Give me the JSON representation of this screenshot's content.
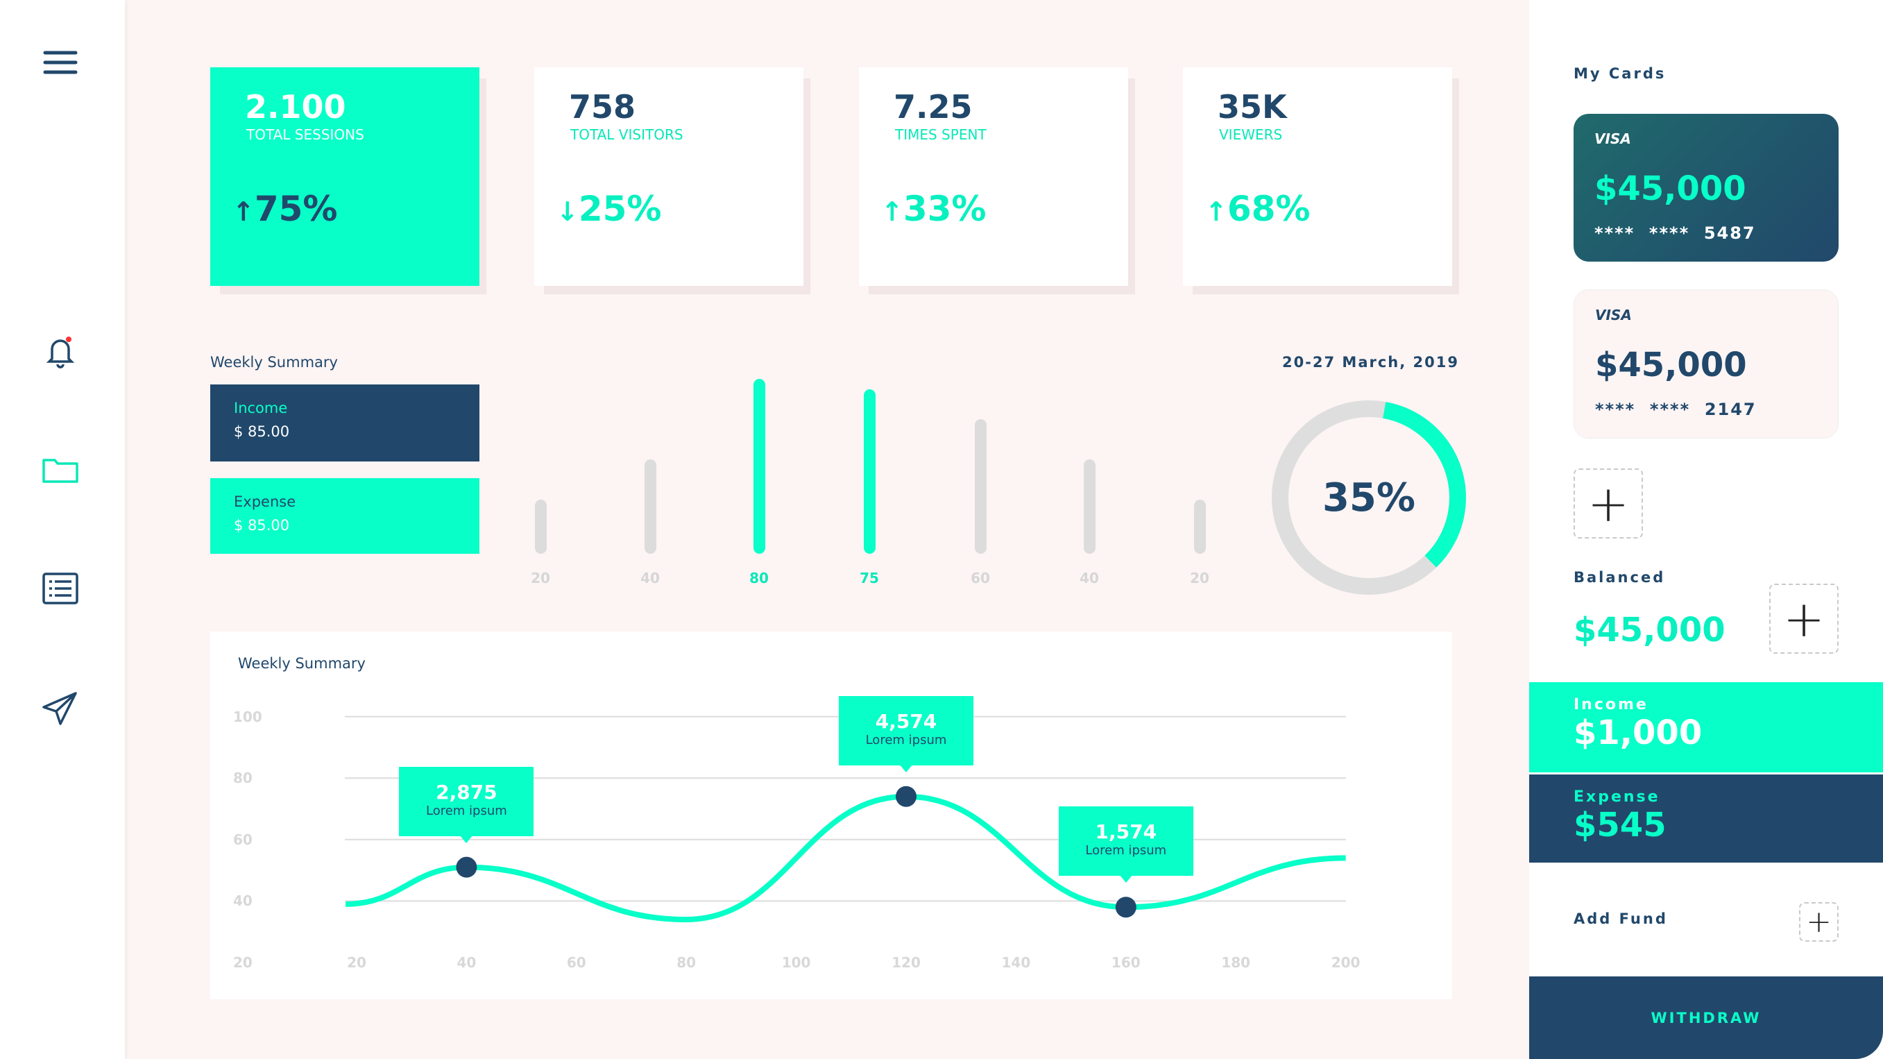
{
  "colors": {
    "accent": "#08ffc8",
    "navy": "#21486b",
    "background": "#fdf4f4"
  },
  "sidebar": {
    "icons": [
      "menu-icon",
      "bell-icon",
      "folder-icon",
      "list-icon",
      "send-icon"
    ]
  },
  "stats": [
    {
      "value": "2.100",
      "label": "TOTAL SESSIONS",
      "arrow": "↑",
      "change": "75%"
    },
    {
      "value": "758",
      "label": "TOTAL VISITORS",
      "arrow": "↓",
      "change": "25%"
    },
    {
      "value": "7.25",
      "label": "TIMES SPENT",
      "arrow": "↑",
      "change": "33%"
    },
    {
      "value": "35K",
      "label": "VIEWERS",
      "arrow": "↑",
      "change": "68%"
    }
  ],
  "weekly": {
    "title": "Weekly Summary",
    "date": "20-27 March, 2019",
    "income": {
      "label": "Income",
      "value": "$ 85.00"
    },
    "expense": {
      "label": "Expense",
      "value": "$ 85.00"
    },
    "donut": {
      "label": "35%",
      "value": 35
    }
  },
  "chart_data": [
    {
      "type": "bar",
      "categories": [
        "20",
        "40",
        "80",
        "75",
        "60",
        "40",
        "20"
      ],
      "values": [
        20,
        40,
        80,
        75,
        60,
        40,
        20
      ],
      "highlighted": [
        2,
        3
      ]
    },
    {
      "type": "line",
      "title": "Weekly Summary",
      "x": [
        18,
        40,
        80,
        120,
        160,
        200
      ],
      "y": [
        39,
        51,
        34,
        74,
        38,
        54
      ],
      "xticks": [
        "20",
        "40",
        "60",
        "80",
        "100",
        "120",
        "140",
        "160",
        "180",
        "200"
      ],
      "yticks": [
        "100",
        "80",
        "60",
        "40",
        "20"
      ],
      "ylim": [
        20,
        100
      ],
      "xlim": [
        20,
        200
      ],
      "grid": true,
      "annotations": [
        {
          "x": 40,
          "y": 51,
          "value": "2,875",
          "sub": "Lorem ipsum"
        },
        {
          "x": 120,
          "y": 74,
          "value": "4,574",
          "sub": "Lorem ipsum"
        },
        {
          "x": 160,
          "y": 38,
          "value": "1,574",
          "sub": "Lorem ipsum"
        }
      ]
    }
  ],
  "right": {
    "title": "My Cards",
    "cards": [
      {
        "brand": "VISA",
        "amount": "$45,000",
        "number": "****  ****  5487"
      },
      {
        "brand": "VISA",
        "amount": "$45,000",
        "number": "****  ****  2147"
      }
    ],
    "balanced_label": "Balanced",
    "balanced_value": "$45,000",
    "income_label": "Income",
    "income_value": "$1,000",
    "expense_label": "Expense",
    "expense_value": "$545",
    "add_fund": "Add Fund",
    "withdraw": "WITHDRAW",
    "plus": "+"
  }
}
